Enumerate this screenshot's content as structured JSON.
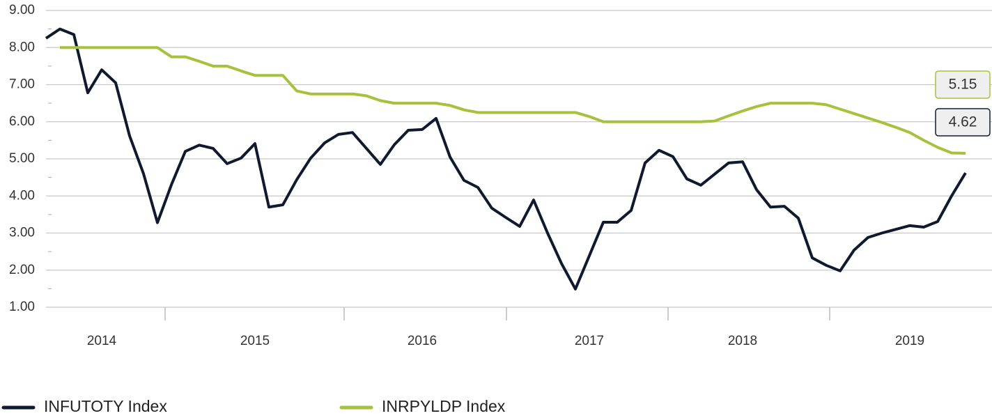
{
  "chart_data": {
    "type": "line",
    "categories": [
      null,
      null,
      null,
      null,
      "2014",
      null,
      null,
      null,
      null,
      null,
      null,
      null,
      null,
      null,
      null,
      "2015",
      null,
      null,
      null,
      null,
      null,
      null,
      null,
      null,
      null,
      null,
      null,
      "2016",
      null,
      null,
      null,
      null,
      null,
      null,
      null,
      null,
      null,
      null,
      null,
      "2017",
      null,
      null,
      null,
      null,
      null,
      null,
      null,
      null,
      null,
      null,
      "2018",
      null,
      null,
      null,
      null,
      null,
      null,
      null,
      null,
      null,
      null,
      null,
      "2019",
      null,
      null,
      null,
      null
    ],
    "series": [
      {
        "name": "INFUTOTY Index",
        "color": "#0f1a2e",
        "values": [
          8.25,
          8.5,
          8.35,
          6.78,
          7.4,
          7.05,
          5.62,
          4.6,
          3.28,
          4.3,
          5.2,
          5.37,
          5.28,
          4.87,
          5.02,
          5.41,
          3.7,
          3.76,
          4.44,
          5.02,
          5.43,
          5.66,
          5.71,
          5.28,
          4.85,
          5.38,
          5.77,
          5.79,
          6.09,
          5.05,
          4.42,
          4.23,
          3.67,
          3.42,
          3.18,
          3.89,
          3.0,
          2.18,
          1.49,
          2.39,
          3.29,
          3.29,
          3.61,
          4.89,
          5.23,
          5.06,
          4.46,
          4.29,
          4.59,
          4.89,
          4.92,
          4.17,
          3.7,
          3.72,
          3.4,
          2.33,
          2.13,
          1.98,
          2.54,
          2.88,
          3.0,
          3.1,
          3.2,
          3.16,
          3.31,
          4.0,
          4.62
        ],
        "value_labels": [
          null,
          null,
          null,
          null,
          null,
          null,
          null,
          null,
          null,
          null,
          null,
          null,
          null,
          null,
          null,
          null,
          null,
          null,
          null,
          null,
          null,
          null,
          null,
          null,
          null,
          null,
          null,
          null,
          null,
          null,
          null,
          null,
          null,
          null,
          null,
          null,
          null,
          null,
          null,
          null,
          null,
          null,
          null,
          null,
          null,
          null,
          null,
          null,
          null,
          null,
          null,
          null,
          null,
          null,
          null,
          null,
          null,
          null,
          null,
          null,
          null,
          null,
          null,
          null,
          null,
          null,
          "4.62"
        ]
      },
      {
        "name": "INRPYLDP Index",
        "color": "#a5c23c",
        "values": [
          null,
          8,
          8,
          8,
          8,
          8,
          8,
          8,
          8,
          7.75,
          7.75,
          7.63,
          7.5,
          7.5,
          7.37,
          7.25,
          7.25,
          7.25,
          6.83,
          6.75,
          6.75,
          6.75,
          6.75,
          6.7,
          6.57,
          6.5,
          6.5,
          6.5,
          6.5,
          6.44,
          6.32,
          6.25,
          6.25,
          6.25,
          6.25,
          6.25,
          6.25,
          6.25,
          6.25,
          6.14,
          6.0,
          6.0,
          6.0,
          6.0,
          6.0,
          6.0,
          6.0,
          6.0,
          6.02,
          6.16,
          6.29,
          6.41,
          6.5,
          6.5,
          6.5,
          6.5,
          6.46,
          6.34,
          6.22,
          6.1,
          5.98,
          5.85,
          5.71,
          5.5,
          5.31,
          5.16,
          5.15
        ],
        "value_labels": [
          null,
          null,
          null,
          null,
          null,
          null,
          null,
          null,
          null,
          null,
          null,
          null,
          null,
          null,
          null,
          null,
          null,
          null,
          null,
          null,
          null,
          null,
          null,
          null,
          null,
          null,
          null,
          null,
          null,
          null,
          null,
          null,
          null,
          null,
          null,
          null,
          null,
          null,
          null,
          null,
          null,
          null,
          null,
          null,
          null,
          null,
          null,
          null,
          null,
          null,
          null,
          null,
          null,
          null,
          null,
          null,
          null,
          null,
          null,
          null,
          null,
          null,
          null,
          null,
          null,
          null,
          "5.15"
        ]
      }
    ],
    "ylim": [
      1,
      9
    ],
    "yticks": [
      {
        "value": 1,
        "label": "1.00"
      },
      {
        "value": 2,
        "label": "2.00"
      },
      {
        "value": 3,
        "label": "3.00"
      },
      {
        "value": 4,
        "label": "4.00"
      },
      {
        "value": 5,
        "label": "5.00"
      },
      {
        "value": 6,
        "label": "6.00"
      },
      {
        "value": 7,
        "label": "7.00"
      },
      {
        "value": 8,
        "label": "8.00"
      },
      {
        "value": 9,
        "label": "9.00"
      }
    ],
    "grid": true
  }
}
